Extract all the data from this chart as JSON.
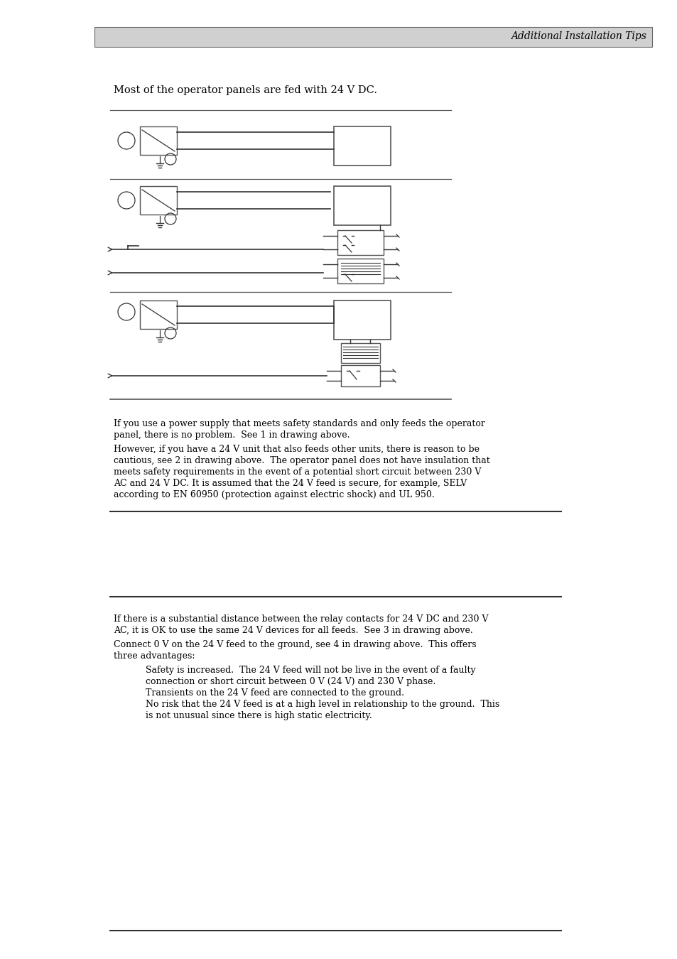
{
  "header_text": "Additional Installation Tips",
  "header_bg": "#d0d0d0",
  "page_bg": "#ffffff",
  "intro_text": "Most of the operator panels are fed with 24 V DC.",
  "para1_line1": "If you use a power supply that meets safety standards and only feeds the operator",
  "para1_line2": "panel, there is no problem.  See 1 in drawing above.",
  "para2_line1": "However, if you have a 24 V unit that also feeds other units, there is reason to be",
  "para2_line2": "cautious, see 2 in drawing above.  The operator panel does not have insulation that",
  "para2_line3": "meets safety requirements in the event of a potential short circuit between 230 V",
  "para2_line4": "AC and 24 V DC. It is assumed that the 24 V feed is secure, for example, SELV",
  "para2_line5": "according to EN 60950 (protection against electric shock) and UL 950.",
  "para3_line1": "If there is a substantial distance between the relay contacts for 24 V DC and 230 V",
  "para3_line2": "AC, it is OK to use the same 24 V devices for all feeds.  See 3 in drawing above.",
  "para4_line1": "Connect 0 V on the 24 V feed to the ground, see 4 in drawing above.  This offers",
  "para4_line2": "three advantages:",
  "bullet1_line1": "Safety is increased.  The 24 V feed will not be live in the event of a faulty",
  "bullet1_line2": "connection or short circuit between 0 V (24 V) and 230 V phase.",
  "bullet2": "Transients on the 24 V feed are connected to the ground.",
  "bullet3_line1": "No risk that the 24 V feed is at a high level in relationship to the ground.  This",
  "bullet3_line2": "is not unusual since there is high static electricity.",
  "font_size_body": 9.0,
  "font_size_header": 10,
  "text_color": "#000000",
  "line_color": "#000000"
}
